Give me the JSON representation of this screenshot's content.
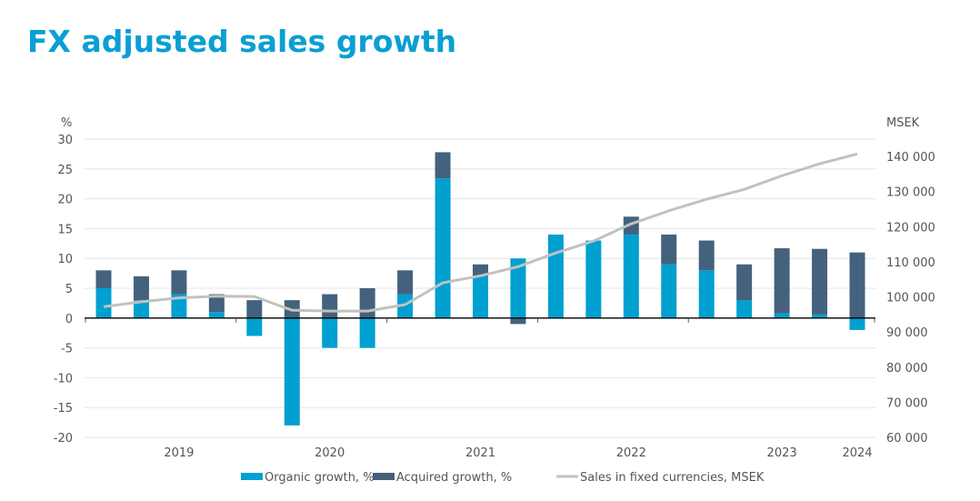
{
  "title": "FX adjusted sales growth",
  "chart_data": {
    "type": "bar",
    "stacked": true,
    "ylabel": "%",
    "y2label": "MSEK",
    "ylim": [
      -20,
      30
    ],
    "yticks": [
      30,
      25,
      20,
      15,
      10,
      5,
      0,
      -5,
      -10,
      -15,
      -20
    ],
    "y2lim": [
      60000,
      140000
    ],
    "y2ticks": [
      "140 000",
      "130 000",
      "120 000",
      "110 000",
      "100 000",
      "90 000",
      "80 000",
      "70 000",
      "60 000"
    ],
    "y2tick_values": [
      140000,
      130000,
      120000,
      110000,
      100000,
      90000,
      80000,
      70000,
      60000
    ],
    "grid": true,
    "legend_position": "bottom",
    "year_labels": [
      {
        "label": "2019",
        "index": 2
      },
      {
        "label": "2020",
        "index": 6
      },
      {
        "label": "2021",
        "index": 10
      },
      {
        "label": "2022",
        "index": 14
      },
      {
        "label": "2023",
        "index": 18
      },
      {
        "label": "2024",
        "index": 20
      }
    ],
    "series": [
      {
        "name": "Organic growth, %",
        "type": "bar",
        "color": "#00a0d1",
        "values": [
          5,
          3,
          4,
          1,
          -3,
          -18,
          -5,
          -5,
          4,
          23.4,
          7,
          10,
          14,
          13,
          14,
          9,
          8,
          3,
          0.8,
          0.6,
          -2
        ]
      },
      {
        "name": "Acquired growth, %",
        "type": "bar",
        "color": "#44627d",
        "values": [
          3,
          4,
          4,
          3,
          3,
          3,
          4,
          5,
          4,
          4.4,
          2,
          -1,
          0,
          0,
          3,
          5,
          5,
          6,
          10.9,
          11,
          11
        ]
      },
      {
        "name": "Sales in fixed currencies, MSEK",
        "type": "line",
        "axis": "right",
        "color": "#c2c2bd",
        "values": [
          97200,
          98600,
          99700,
          100200,
          100100,
          96200,
          95950,
          95950,
          97800,
          104000,
          106000,
          108600,
          112500,
          115900,
          120800,
          124500,
          127800,
          130600,
          134500,
          137900,
          140700
        ]
      }
    ]
  }
}
